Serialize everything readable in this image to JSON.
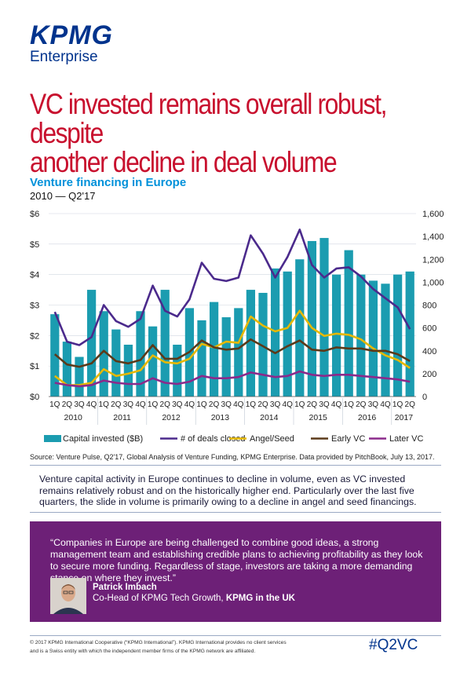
{
  "brand": {
    "name": "KPMG",
    "sub": "Enterprise"
  },
  "headline": {
    "line1": "VC invested remains overall robust, despite",
    "line2": "another decline in deal volume"
  },
  "chart_data": {
    "type": "bar",
    "title": "Venture financing in Europe",
    "subtitle": "2010 — Q2'17",
    "categories": [
      "1Q",
      "2Q",
      "3Q",
      "4Q",
      "1Q",
      "2Q",
      "3Q",
      "4Q",
      "1Q",
      "2Q",
      "3Q",
      "4Q",
      "1Q",
      "2Q",
      "3Q",
      "4Q",
      "1Q",
      "2Q",
      "3Q",
      "4Q",
      "1Q",
      "2Q",
      "3Q",
      "4Q",
      "1Q",
      "2Q",
      "3Q",
      "4Q",
      "1Q",
      "2Q"
    ],
    "years": [
      "2010",
      "2011",
      "2012",
      "2013",
      "2014",
      "2015",
      "2016",
      "2017"
    ],
    "left_axis": {
      "ticks": [
        "$0",
        "$1",
        "$2",
        "$3",
        "$4",
        "$5",
        "$6"
      ],
      "range": [
        0,
        6
      ]
    },
    "right_axis": {
      "ticks": [
        "0",
        "200",
        "400",
        "600",
        "800",
        "1,000",
        "1,200",
        "1,400",
        "1,600"
      ],
      "range": [
        0,
        1600
      ]
    },
    "legend_position": "bottom",
    "series": [
      {
        "name": "Capital invested ($B)",
        "axis": "left",
        "kind": "bar",
        "color": "#1B9CB0",
        "values": [
          2.7,
          1.8,
          1.3,
          3.5,
          2.8,
          2.2,
          1.7,
          2.8,
          2.3,
          3.5,
          1.7,
          2.9,
          2.5,
          3.1,
          2.6,
          2.9,
          3.5,
          3.4,
          4.2,
          4.1,
          4.5,
          5.1,
          5.2,
          4.0,
          4.8,
          4.0,
          3.8,
          3.7,
          4.0,
          4.1
        ]
      },
      {
        "name": "# of deals closed",
        "axis": "right",
        "kind": "line",
        "color": "#4B2A8C",
        "values": [
          740,
          480,
          450,
          520,
          800,
          660,
          610,
          680,
          970,
          750,
          700,
          850,
          1170,
          1030,
          1010,
          1040,
          1410,
          1250,
          1040,
          1220,
          1460,
          1150,
          1040,
          1120,
          1130,
          1050,
          940,
          860,
          780,
          590
        ]
      },
      {
        "name": "Angel/Seed",
        "axis": "right",
        "kind": "line",
        "color": "#E6B800",
        "values": [
          180,
          100,
          100,
          120,
          240,
          180,
          200,
          230,
          360,
          300,
          290,
          330,
          460,
          430,
          480,
          470,
          700,
          620,
          570,
          600,
          750,
          600,
          530,
          550,
          540,
          500,
          420,
          360,
          320,
          250
        ]
      },
      {
        "name": "Early VC",
        "axis": "right",
        "kind": "line",
        "color": "#5B3A1A",
        "values": [
          370,
          280,
          260,
          290,
          400,
          310,
          290,
          320,
          450,
          330,
          330,
          390,
          490,
          430,
          410,
          420,
          500,
          440,
          380,
          440,
          490,
          410,
          400,
          430,
          420,
          420,
          400,
          400,
          370,
          310
        ]
      },
      {
        "name": "Later VC",
        "axis": "right",
        "kind": "line",
        "color": "#8B2A8B",
        "values": [
          120,
          100,
          90,
          100,
          140,
          120,
          110,
          110,
          160,
          120,
          110,
          130,
          180,
          160,
          160,
          170,
          210,
          190,
          170,
          180,
          220,
          190,
          180,
          190,
          190,
          180,
          170,
          160,
          150,
          130
        ]
      }
    ]
  },
  "source": "Source: Venture Pulse, Q2'17, Global Analysis of Venture Funding, KPMG Enterprise. Data provided by PitchBook, July 13, 2017.",
  "body": "Venture capital activity in Europe continues to decline in volume, even as VC invested remains relatively robust and on the historically higher end. Particularly over the last five quarters, the slide in volume is primarily owing to a decline in angel and seed financings.",
  "quote": {
    "text": "“Companies in Europe are being challenged to combine good ideas, a strong management team and establishing credible plans to achieving profitability as they look to secure more funding. Regardless of stage, investors are taking a more demanding stance on where they invest.”",
    "name": "Patrick Imbach",
    "role": "Co-Head of KPMG Tech Growth, ",
    "org": "KPMG in the UK"
  },
  "footer": {
    "copyright": "© 2017 KPMG International Cooperative (“KPMG International”). KPMG International provides no client services and is a Swiss entity with which the independent member firms of the KPMG network are affiliated.",
    "hashtag": "#Q2VC"
  }
}
